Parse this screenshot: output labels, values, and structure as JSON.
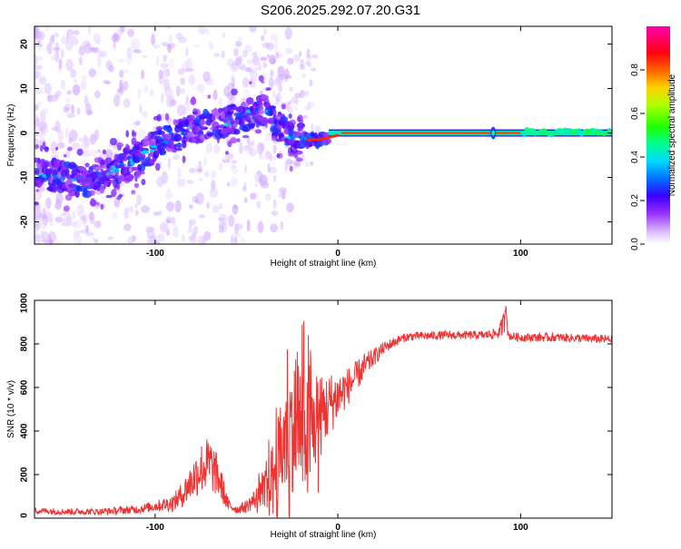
{
  "title": "S206.2025.292.07.20.G31",
  "chart_data": [
    {
      "type": "heatmap",
      "xlabel": "Height of straight line (km)",
      "ylabel": "Frequency (Hz)",
      "xlim": [
        -166,
        150
      ],
      "ylim": [
        -25,
        24
      ],
      "x_ticks": [
        -100,
        0,
        100
      ],
      "y_ticks": [
        -20,
        -10,
        0,
        10,
        20
      ],
      "colorbar": {
        "label": "Normalized spectral amplitude",
        "range": [
          0,
          1
        ],
        "ticks": [
          0.0,
          0.2,
          0.4,
          0.6,
          0.8
        ],
        "colors": [
          "#ffffff",
          "#e8d8ff",
          "#b070ff",
          "#7f00ff",
          "#2000ff",
          "#00a0ff",
          "#00ffc0",
          "#00ff00",
          "#c0ff00",
          "#ffc000",
          "#ff4000",
          "#ff0000",
          "#ff0080",
          "#ff00c0"
        ]
      },
      "ridge": {
        "x": [
          -166,
          -150,
          -140,
          -130,
          -120,
          -110,
          -100,
          -90,
          -80,
          -70,
          -60,
          -50,
          -42,
          -38,
          -34,
          -30,
          -25,
          -20,
          -15,
          -10,
          -5,
          0,
          10,
          40,
          80,
          100,
          120,
          150
        ],
        "y": [
          -9,
          -10,
          -11,
          -10,
          -8,
          -6,
          -3,
          -1,
          1,
          2,
          2.5,
          4,
          5.5,
          5,
          2,
          1,
          -1.5,
          -1.5,
          -1.5,
          -1.5,
          -1,
          -0.5,
          0,
          0,
          0,
          0,
          0.5,
          0.5
        ]
      }
    },
    {
      "type": "line",
      "xlabel": "Height of straight line (km)",
      "ylabel": "SNR (10 * v/v)",
      "xlim": [
        -166,
        150
      ],
      "ylim": [
        0,
        1000
      ],
      "x_ticks": [
        -100,
        0,
        100
      ],
      "y_ticks": [
        0,
        200,
        400,
        600,
        800,
        1000
      ],
      "color": "#ee3333",
      "envelope": {
        "x": [
          -166,
          -150,
          -130,
          -110,
          -100,
          -90,
          -85,
          -80,
          -75,
          -70,
          -65,
          -60,
          -55,
          -50,
          -45,
          -40,
          -35,
          -30,
          -25,
          -20,
          -15,
          -10,
          -5,
          0,
          5,
          10,
          15,
          20,
          25,
          30,
          35,
          40,
          60,
          80,
          88,
          91,
          92,
          93,
          95,
          100,
          120,
          150
        ],
        "y": [
          35,
          30,
          30,
          40,
          55,
          70,
          110,
          170,
          230,
          250,
          180,
          60,
          40,
          55,
          90,
          130,
          220,
          330,
          420,
          420,
          380,
          460,
          520,
          560,
          600,
          650,
          700,
          740,
          780,
          805,
          825,
          835,
          840,
          840,
          850,
          900,
          990,
          840,
          835,
          830,
          830,
          820
        ],
        "spread": [
          15,
          15,
          15,
          20,
          25,
          40,
          60,
          90,
          120,
          130,
          90,
          30,
          20,
          30,
          50,
          80,
          150,
          250,
          300,
          300,
          260,
          200,
          150,
          120,
          90,
          70,
          60,
          40,
          30,
          25,
          20,
          20,
          20,
          20,
          25,
          60,
          20,
          20,
          20,
          20,
          20,
          20
        ]
      }
    }
  ]
}
